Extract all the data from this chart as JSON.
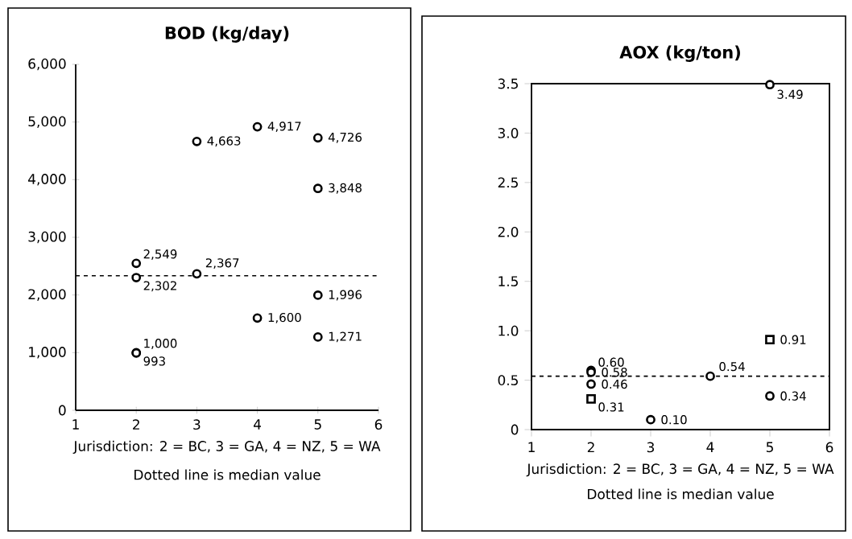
{
  "chart_data": [
    {
      "type": "scatter",
      "title": "BOD (kg/day)",
      "xlabel": "Jurisdiction: 2 = BC, 3 = GA, 4 = NZ, 5 = WA",
      "annotations": [
        "Dotted line is median value"
      ],
      "xlim": [
        1,
        6
      ],
      "xticks": [
        1,
        2,
        3,
        4,
        5,
        6
      ],
      "ylim": [
        0,
        6000
      ],
      "yticks": [
        0,
        {
          "value": 1000,
          "label": "1,000"
        },
        {
          "value": 2000,
          "label": "2,000"
        },
        {
          "value": 3000,
          "label": "3,000"
        },
        {
          "value": 4000,
          "label": "4,000"
        },
        {
          "value": 5000,
          "label": "5,000"
        },
        {
          "value": 6000,
          "label": "6,000"
        }
      ],
      "series": [
        {
          "color": "#000000",
          "marker": "circle",
          "x": [
            2,
            2,
            2,
            2,
            3,
            3,
            4,
            4,
            5,
            5,
            5,
            5
          ],
          "values": [
            2549,
            2302,
            1000,
            993,
            4663,
            2367,
            4917,
            1600,
            4726,
            3848,
            1996,
            1271
          ],
          "value_labels": [
            "2,549",
            "2,302",
            "1,000",
            "993",
            "4,663",
            "2,367",
            "4,917",
            "1,600",
            "4,726",
            "3,848",
            "1,996",
            "1,271"
          ]
        }
      ],
      "ref_lines": [
        {
          "axis": "y",
          "value": 2334.5,
          "line_style": "dotted"
        }
      ]
    },
    {
      "type": "scatter",
      "title": "AOX (kg/ton)",
      "xlabel": "Jurisdiction: 2 = BC, 3 = GA, 4 = NZ, 5 = WA",
      "annotations": [
        "Dotted line is median value"
      ],
      "xlim": [
        1,
        6
      ],
      "xticks": [
        1,
        2,
        3,
        4,
        5,
        6
      ],
      "ylim": [
        0,
        3.5
      ],
      "yticks": [
        0,
        0.5,
        {
          "value": 1,
          "label": "1.0"
        },
        1.5,
        {
          "value": 2,
          "label": "2.0"
        },
        2.5,
        {
          "value": 3,
          "label": "3.0"
        },
        3.5
      ],
      "series": [
        {
          "color": "#000000",
          "marker": "circle",
          "x": [
            2,
            2,
            2,
            3,
            4,
            5,
            5
          ],
          "values": [
            0.6,
            0.58,
            0.46,
            0.1,
            0.54,
            3.49,
            0.34
          ],
          "value_labels": [
            "0.60",
            "0.58",
            "0.46",
            "0.10",
            "0.54",
            "3.49",
            "0.34"
          ]
        },
        {
          "color": "#000000",
          "marker": "square",
          "x": [
            2,
            5
          ],
          "values": [
            0.31,
            0.91
          ],
          "value_labels": [
            "0.31",
            "0.91"
          ]
        }
      ],
      "ref_lines": [
        {
          "axis": "y",
          "value": 0.54,
          "line_style": "dotted"
        }
      ]
    }
  ]
}
